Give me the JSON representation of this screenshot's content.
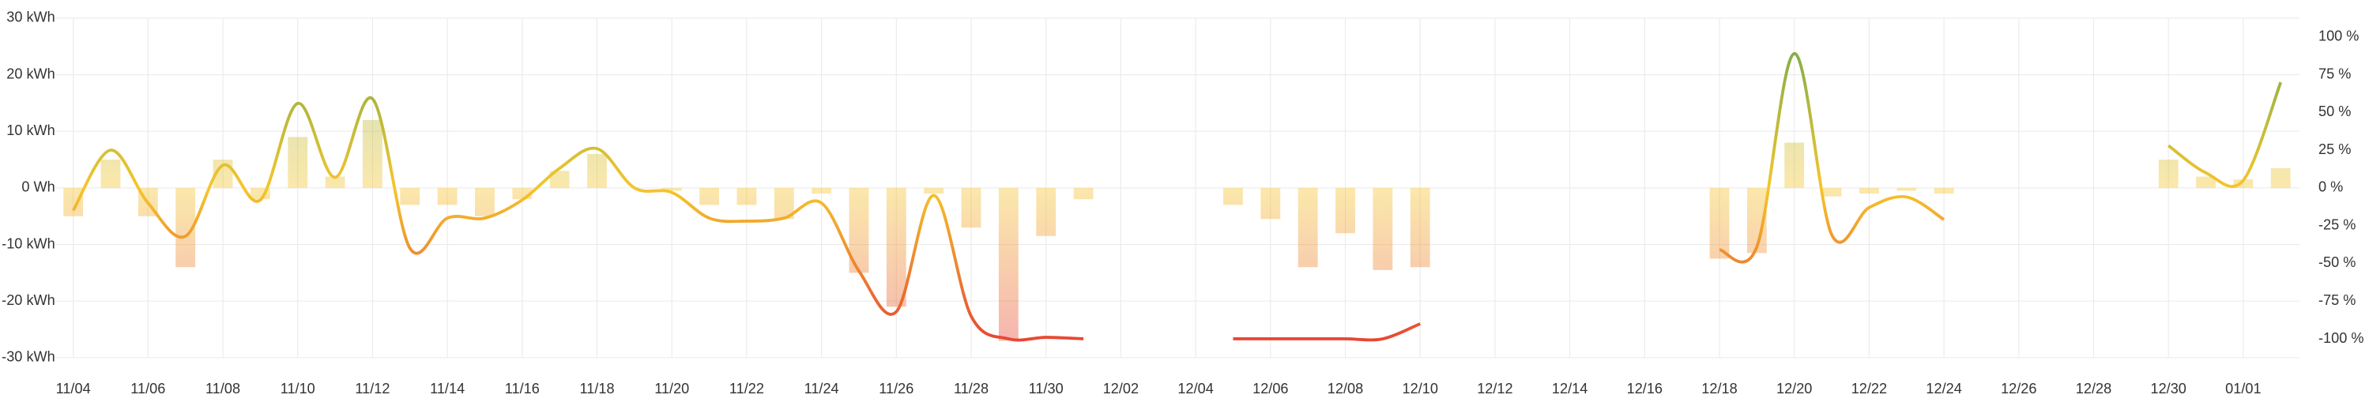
{
  "chart_data": {
    "type": "combo",
    "x": [
      "11/04",
      null,
      "11/06",
      null,
      "11/08",
      null,
      "11/10",
      null,
      "11/12",
      null,
      "11/14",
      null,
      "11/16",
      null,
      "11/18",
      null,
      "11/20",
      null,
      "11/22",
      null,
      "11/24",
      null,
      "11/26",
      null,
      "11/28",
      null,
      "11/30",
      null,
      "12/02",
      null,
      "12/04",
      null,
      "12/06",
      null,
      "12/08",
      null,
      "12/10",
      null,
      "12/12",
      null,
      "12/14",
      null,
      "12/16",
      null,
      "12/18",
      null,
      "12/20",
      null,
      "12/22",
      null,
      "12/24",
      null,
      "12/26",
      null,
      "12/28",
      null,
      "12/30",
      null,
      "01/01",
      null
    ],
    "series": [
      {
        "type": "bar",
        "values": [
          -5,
          5,
          -5,
          -14,
          5,
          -2,
          9,
          2,
          12,
          -3,
          -3,
          -5,
          -2,
          3,
          6,
          null,
          -0.5,
          -3,
          -3,
          -5.5,
          -1,
          -15,
          -21,
          -1,
          -7,
          -27,
          -8.5,
          -2,
          null,
          null,
          null,
          -3,
          -5.5,
          -14,
          -8,
          -14.5,
          -14,
          null,
          null,
          null,
          null,
          null,
          null,
          null,
          -12.5,
          -11.5,
          8,
          -1.5,
          -1,
          -0.5,
          -1,
          null,
          null,
          null,
          null,
          null,
          5,
          2,
          1.5,
          3.5
        ]
      },
      {
        "type": "line",
        "axis": "y2",
        "values": [
          -15,
          25,
          -10,
          -32,
          15,
          -8,
          56,
          7,
          59,
          -40,
          -20,
          -20,
          -8,
          13,
          26,
          0,
          -3,
          -20,
          -22,
          -20,
          -10,
          -55,
          -82,
          -5,
          -85,
          -100,
          -99,
          -100,
          null,
          null,
          null,
          -100,
          -100,
          -100,
          -100,
          -100,
          -90,
          null,
          null,
          null,
          null,
          null,
          null,
          null,
          -41,
          -39,
          89,
          -31,
          -13,
          -6,
          -21,
          null,
          null,
          null,
          null,
          null,
          28,
          10,
          5,
          70
        ]
      }
    ],
    "color_scale": {
      "positive": "#6aa84f",
      "zero": "#f5c52c",
      "negative": "#e53935"
    },
    "ylim": [
      -30,
      30
    ],
    "yticks": [
      {
        "value": -30,
        "label": "-30 kWh"
      },
      {
        "value": -20,
        "label": "-20 kWh"
      },
      {
        "value": -10,
        "label": "-10 kWh"
      },
      {
        "value": 0,
        "label": "0 Wh"
      },
      {
        "value": 10,
        "label": "10 kWh"
      },
      {
        "value": 20,
        "label": "20 kWh"
      },
      {
        "value": 30,
        "label": "30 kWh"
      }
    ],
    "y2lim": [
      -112.5,
      112.5
    ],
    "y2ticks": [
      {
        "value": -100,
        "label": "-100 %"
      },
      {
        "value": -75,
        "label": "-75 %"
      },
      {
        "value": -50,
        "label": "-50 %"
      },
      {
        "value": -25,
        "label": "-25 %"
      },
      {
        "value": 0,
        "label": "0 %"
      },
      {
        "value": 25,
        "label": "25 %"
      },
      {
        "value": 50,
        "label": "50 %"
      },
      {
        "value": 75,
        "label": "75 %"
      },
      {
        "value": 100,
        "label": "100 %"
      }
    ],
    "grid": true
  }
}
